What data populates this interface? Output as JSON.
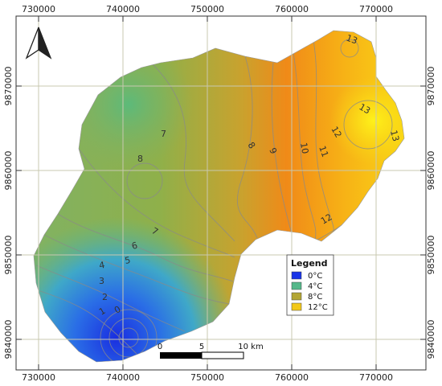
{
  "map": {
    "x_ticks": [
      "730000",
      "740000",
      "750000",
      "760000",
      "770000"
    ],
    "y_ticks": [
      "9870000",
      "9860000",
      "9850000",
      "9840000"
    ],
    "contour_labels": [
      "13",
      "13",
      "12",
      "13",
      "11",
      "10",
      "9",
      "8",
      "7",
      "8",
      "7",
      "6",
      "5",
      "4",
      "3",
      "2",
      "1",
      "0",
      "12"
    ],
    "legend": {
      "title": "Legend",
      "items": [
        {
          "label": "0°C",
          "color": "#1a35e8"
        },
        {
          "label": "4°C",
          "color": "#55b88a"
        },
        {
          "label": "8°C",
          "color": "#b3a634"
        },
        {
          "label": "12°C",
          "color": "#f2c81a"
        }
      ]
    },
    "scale_bar": {
      "labels": [
        "0",
        "5",
        "10 km"
      ]
    },
    "north_arrow": "north-arrow-icon"
  }
}
